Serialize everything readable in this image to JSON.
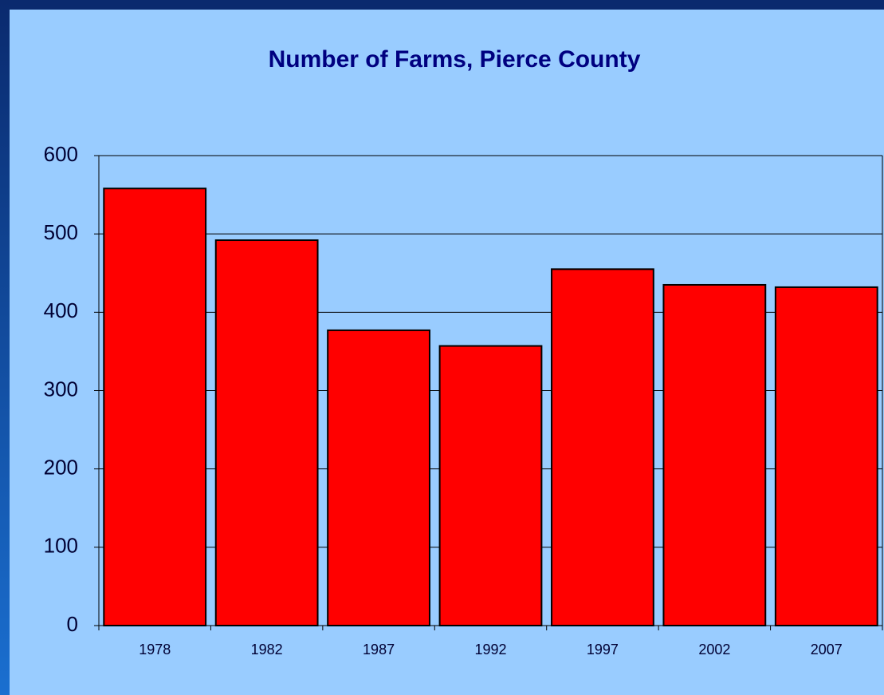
{
  "chart_data": {
    "type": "bar",
    "title": "Number of Farms, Pierce County",
    "categories": [
      "1978",
      "1982",
      "1987",
      "1992",
      "1997",
      "2002",
      "2007"
    ],
    "values": [
      558,
      492,
      377,
      357,
      455,
      435,
      432
    ],
    "color": "#ff0000",
    "ylim": [
      0,
      600
    ],
    "yticks": [
      0,
      100,
      200,
      300,
      400,
      500,
      600
    ],
    "grid": true
  }
}
